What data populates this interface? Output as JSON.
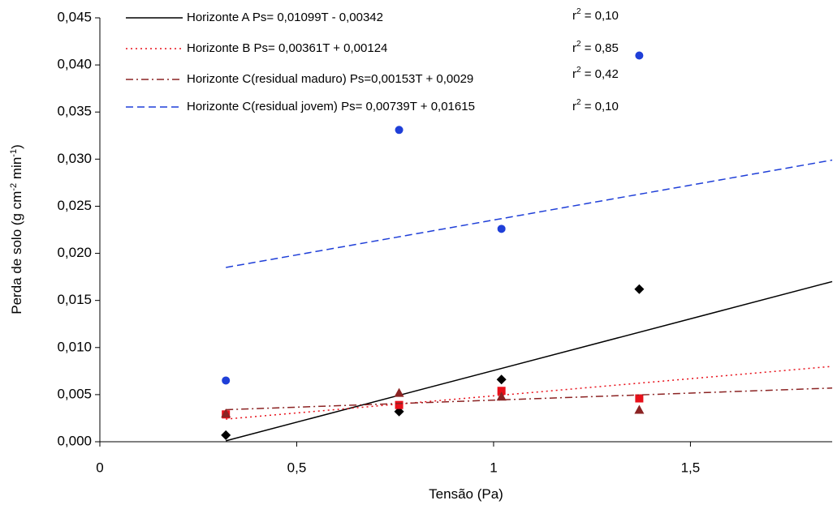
{
  "chart_data": {
    "type": "scatter",
    "x_label": "Tensão (Pa)",
    "y_label_parts": [
      "Perda de solo (g cm",
      "-2",
      " min",
      "-1",
      ")"
    ],
    "xlim": [
      0,
      1.86
    ],
    "ylim": [
      0,
      0.045
    ],
    "xticks": [
      0,
      {
        "value": 0.5,
        "label": "0,5"
      },
      1,
      {
        "value": 1.5,
        "label": "1,5"
      }
    ],
    "yticks": [
      {
        "value": 0,
        "label": "0,000"
      },
      {
        "value": 0.005,
        "label": "0,005"
      },
      {
        "value": 0.01,
        "label": "0,010"
      },
      {
        "value": 0.015,
        "label": "0,015"
      },
      {
        "value": 0.02,
        "label": "0,020"
      },
      {
        "value": 0.025,
        "label": "0,025"
      },
      {
        "value": 0.03,
        "label": "0,030"
      },
      {
        "value": 0.035,
        "label": "0,035"
      },
      {
        "value": 0.04,
        "label": "0,040"
      },
      {
        "value": 0.045,
        "label": "0,045"
      }
    ],
    "series": [
      {
        "name": "Horizonte A Ps= 0,01099T - 0,00342",
        "color": "#000000",
        "marker": "diamond",
        "line_style": "solid",
        "r2_base": "r",
        "r2_sup": "2",
        "r2_value": " = 0,10",
        "x": [
          0.32,
          0.76,
          1.02,
          1.37
        ],
        "values": [
          0.0007,
          0.0032,
          0.0066,
          0.0162
        ],
        "trend_x": [
          0.32,
          1.86
        ],
        "trend_y": [
          0.0001,
          0.017
        ]
      },
      {
        "name": "Horizonte B Ps= 0,00361T + 0,00124",
        "color": "#e8101a",
        "marker": "square",
        "line_style": "dotted",
        "r2_base": "r",
        "r2_sup": "2",
        "r2_value": " = 0,85",
        "x": [
          0.32,
          0.76,
          1.02,
          1.37
        ],
        "values": [
          0.0029,
          0.0039,
          0.0054,
          0.0046
        ],
        "trend_x": [
          0.32,
          1.86
        ],
        "trend_y": [
          0.0024,
          0.008
        ]
      },
      {
        "name": "Horizonte C(residual maduro) Ps=0,00153T + 0,0029",
        "color": "#8b2323",
        "marker": "triangle",
        "line_style": "dashdot",
        "r2_base": "r",
        "r2_sup": "2",
        "r2_value": " = 0,42",
        "x": [
          0.32,
          0.76,
          1.02,
          1.37
        ],
        "values": [
          0.003,
          0.0052,
          0.0048,
          0.0034
        ],
        "trend_x": [
          0.32,
          1.86
        ],
        "trend_y": [
          0.0034,
          0.0057
        ]
      },
      {
        "name": "Horizonte C(residual jovem) Ps= 0,00739T + 0,01615",
        "color": "#1f3fd8",
        "marker": "circle",
        "line_style": "dashed",
        "r2_base": "r",
        "r2_sup": "2",
        "r2_value": " = 0,10",
        "x": [
          0.32,
          0.76,
          1.02,
          1.37
        ],
        "values": [
          0.0065,
          0.0331,
          0.0226,
          0.041
        ],
        "trend_x": [
          0.32,
          1.86
        ],
        "trend_y": [
          0.0185,
          0.0299
        ]
      }
    ]
  }
}
